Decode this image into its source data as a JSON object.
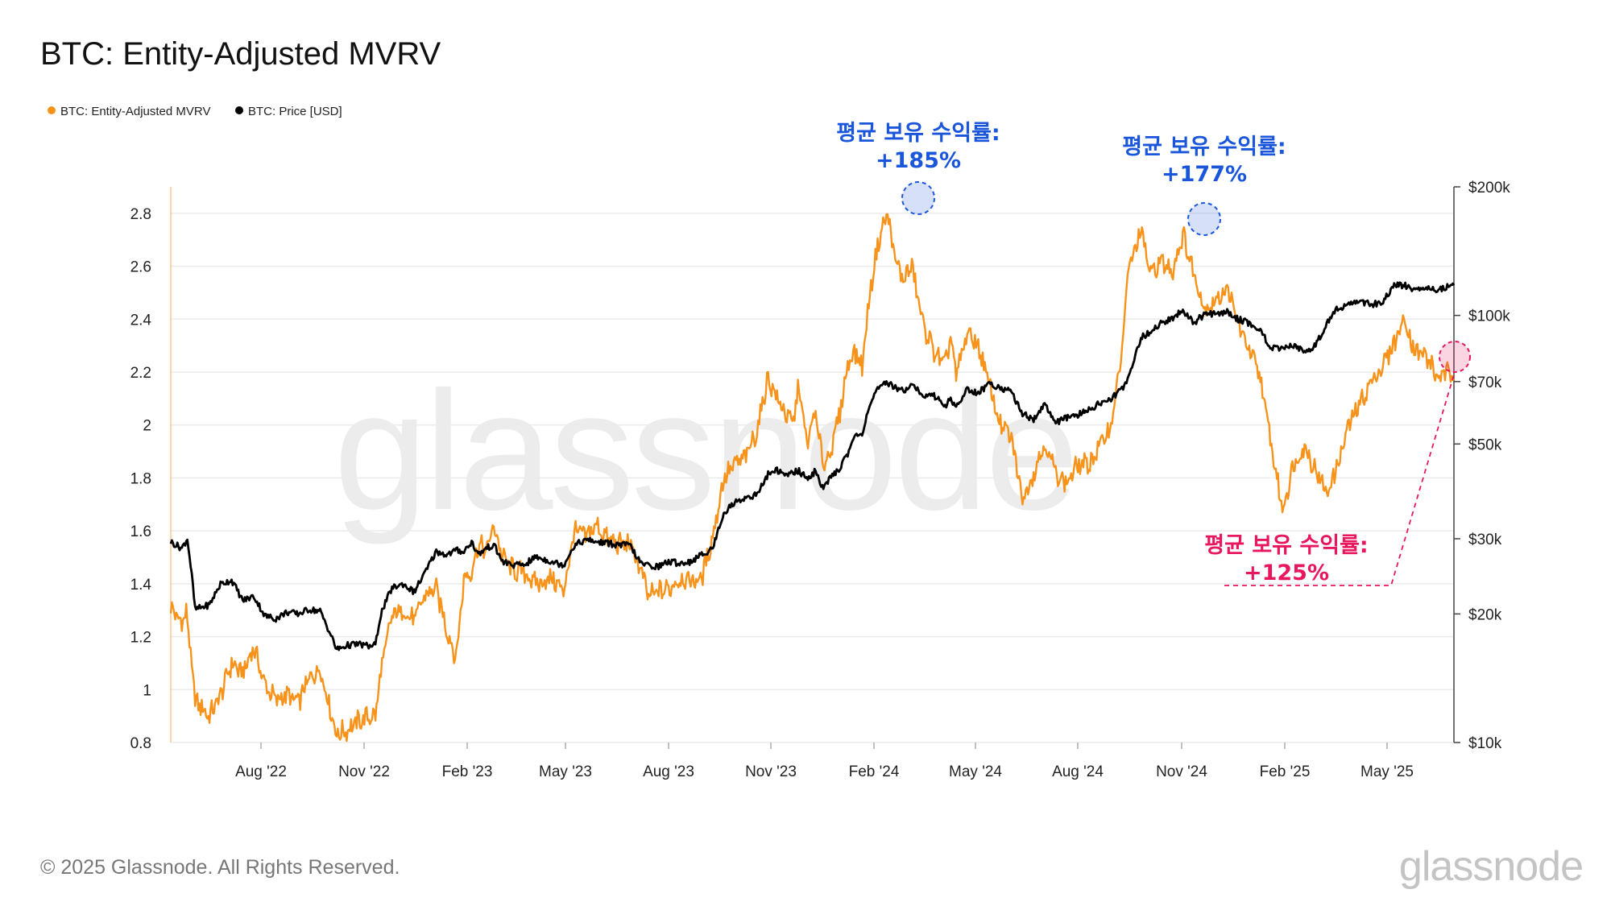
{
  "chart_data": {
    "type": "line",
    "title": "BTC: Entity-Adjusted MVRV",
    "legend": [
      {
        "label": "BTC: Entity-Adjusted MVRV",
        "color": "#f7931a"
      },
      {
        "label": "BTC: Price [USD]",
        "color": "#000000"
      }
    ],
    "x_tick_labels": [
      "Aug '22",
      "Nov '22",
      "Feb '23",
      "May '23",
      "Aug '23",
      "Nov '23",
      "Feb '24",
      "May '24",
      "Aug '24",
      "Nov '24",
      "Feb '25",
      "May '25"
    ],
    "x_range": [
      "2022-05-06",
      "2025-07-20"
    ],
    "left_axis": {
      "ticks": [
        "0.8",
        "1",
        "1.2",
        "1.4",
        "1.6",
        "1.8",
        "2",
        "2.2",
        "2.4",
        "2.6",
        "2.8"
      ],
      "ylim": [
        0.8,
        2.9
      ]
    },
    "right_axis": {
      "scale": "log",
      "ticks": [
        "$10k",
        "$20k",
        "$30k",
        "$50k",
        "$70k",
        "$100k",
        "$200k"
      ],
      "tick_values": [
        10000,
        20000,
        30000,
        50000,
        70000,
        100000,
        200000
      ],
      "ylim": [
        10000,
        200000
      ]
    },
    "series": [
      {
        "name": "BTC: Entity-Adjusted MVRV",
        "axis": "left",
        "color": "#f7931a",
        "x": [
          0,
          10,
          14,
          22,
          35,
          45,
          55,
          65,
          75,
          85,
          95,
          105,
          115,
          125,
          135,
          150,
          160,
          170,
          180,
          185,
          190,
          200,
          210,
          220,
          230,
          240,
          250,
          258,
          265,
          272,
          278,
          285,
          292,
          300,
          310,
          320,
          330,
          345,
          355,
          365,
          375,
          385,
          395,
          405,
          415,
          425,
          432,
          440,
          450,
          460,
          470,
          480,
          490,
          500,
          510,
          520,
          530,
          540,
          548,
          555,
          562,
          568,
          575,
          582,
          590,
          598,
          605,
          612,
          618,
          625,
          632,
          640,
          648,
          655,
          662,
          670,
          680,
          690,
          700,
          705,
          710,
          720,
          730,
          740,
          750,
          760,
          770,
          780,
          790,
          800,
          810,
          820,
          830,
          840,
          850,
          860,
          865,
          870,
          878,
          885,
          895,
          905,
          915,
          925,
          935,
          945,
          955,
          965,
          975,
          985,
          995,
          1005,
          1015,
          1025,
          1035,
          1045,
          1055,
          1065,
          1075,
          1085,
          1095,
          1105,
          1115,
          1125,
          1135,
          1145,
          1160
        ],
        "values": [
          1.31,
          1.25,
          1.3,
          0.96,
          0.9,
          0.98,
          1.1,
          1.06,
          1.16,
          1.02,
          0.96,
          0.98,
          0.95,
          1.04,
          1.08,
          0.83,
          0.85,
          0.88,
          0.9,
          0.9,
          1.07,
          1.28,
          1.3,
          1.26,
          1.36,
          1.38,
          1.22,
          1.12,
          1.42,
          1.45,
          1.55,
          1.52,
          1.62,
          1.5,
          1.45,
          1.44,
          1.4,
          1.42,
          1.37,
          1.6,
          1.58,
          1.62,
          1.57,
          1.55,
          1.55,
          1.45,
          1.35,
          1.37,
          1.38,
          1.42,
          1.41,
          1.42,
          1.58,
          1.8,
          1.85,
          1.88,
          1.98,
          2.18,
          2.1,
          2.05,
          2.0,
          2.15,
          1.92,
          2.05,
          1.85,
          1.92,
          2.05,
          2.23,
          2.28,
          2.22,
          2.5,
          2.7,
          2.8,
          2.62,
          2.55,
          2.6,
          2.38,
          2.28,
          2.22,
          2.34,
          2.18,
          2.35,
          2.3,
          2.15,
          2.0,
          1.95,
          1.72,
          1.82,
          1.93,
          1.82,
          1.78,
          1.85,
          1.85,
          1.92,
          2.0,
          2.28,
          2.56,
          2.65,
          2.73,
          2.57,
          2.62,
          2.58,
          2.72,
          2.57,
          2.44,
          2.47,
          2.52,
          2.38,
          2.28,
          2.18,
          1.92,
          1.68,
          1.85,
          1.92,
          1.83,
          1.74,
          1.85,
          2.0,
          2.08,
          2.16,
          2.22,
          2.3,
          2.4,
          2.28,
          2.26,
          2.18,
          2.2
        ]
      },
      {
        "name": "BTC: Price [USD]",
        "axis": "right",
        "color": "#000000",
        "x": [
          0,
          10,
          15,
          22,
          35,
          45,
          55,
          65,
          75,
          85,
          95,
          105,
          115,
          125,
          135,
          150,
          160,
          170,
          180,
          185,
          190,
          200,
          210,
          220,
          230,
          240,
          250,
          258,
          265,
          272,
          278,
          285,
          292,
          300,
          310,
          320,
          330,
          345,
          355,
          365,
          375,
          385,
          395,
          405,
          415,
          425,
          432,
          440,
          450,
          460,
          470,
          480,
          490,
          500,
          510,
          520,
          530,
          540,
          548,
          555,
          562,
          568,
          575,
          582,
          590,
          598,
          605,
          612,
          618,
          625,
          632,
          640,
          648,
          655,
          662,
          670,
          680,
          690,
          700,
          705,
          710,
          720,
          730,
          740,
          750,
          760,
          770,
          780,
          790,
          800,
          810,
          820,
          830,
          840,
          850,
          860,
          865,
          870,
          878,
          885,
          895,
          905,
          915,
          925,
          935,
          945,
          955,
          965,
          975,
          985,
          995,
          1005,
          1015,
          1025,
          1035,
          1045,
          1055,
          1065,
          1075,
          1085,
          1095,
          1105,
          1115,
          1125,
          1135,
          1145,
          1160
        ],
        "values": [
          29500,
          28500,
          30000,
          20500,
          21000,
          23500,
          24000,
          21500,
          22000,
          19800,
          19500,
          20200,
          20000,
          20500,
          20300,
          16500,
          16900,
          17000,
          16800,
          16900,
          20000,
          23000,
          23500,
          22500,
          25000,
          28000,
          27500,
          28200,
          28000,
          29500,
          27500,
          28500,
          29000,
          26500,
          26000,
          26100,
          27200,
          26500,
          26000,
          29000,
          29800,
          29500,
          29300,
          29000,
          29000,
          26200,
          26000,
          25800,
          26500,
          26300,
          26500,
          27500,
          28500,
          34500,
          36500,
          37500,
          38000,
          42500,
          43500,
          42000,
          43000,
          43200,
          41500,
          43000,
          39500,
          42000,
          44000,
          47500,
          52000,
          52800,
          62000,
          67500,
          69500,
          68000,
          66500,
          69500,
          64500,
          65000,
          61500,
          63500,
          61000,
          67000,
          66000,
          69000,
          68000,
          66000,
          59000,
          57000,
          62000,
          56000,
          57500,
          58500,
          60000,
          62500,
          63500,
          67500,
          71000,
          78000,
          89000,
          91000,
          96000,
          98000,
          103000,
          96000,
          101000,
          100500,
          102000,
          98000,
          96000,
          92000,
          84000,
          83000,
          85000,
          82000,
          85000,
          96000,
          104000,
          106000,
          108000,
          106000,
          107000,
          117000,
          118000,
          114000,
          117000,
          115000,
          118000
        ]
      }
    ],
    "annotations": [
      {
        "line1": "평균 보유 수익률:",
        "line2": "+185%",
        "color": "#1a56db"
      },
      {
        "line1": "평균 보유 수익률:",
        "line2": "+177%",
        "color": "#1a56db"
      },
      {
        "line1": "평균 보유 수익률:",
        "line2": "+125%",
        "color": "#e8175d"
      }
    ]
  },
  "watermark": "glassnode",
  "footer": {
    "copyright": "© 2025 Glassnode. All Rights Reserved.",
    "brand": "glassnode"
  }
}
